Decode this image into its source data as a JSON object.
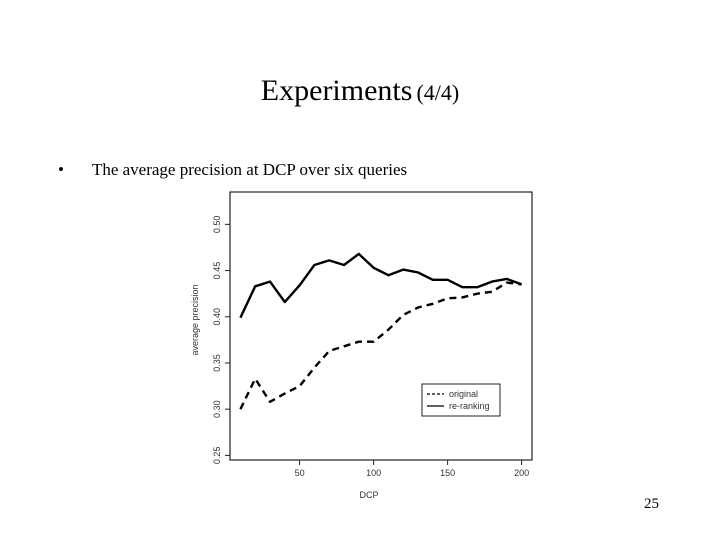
{
  "slide": {
    "title": "Experiments",
    "title_suffix": "(4/4)",
    "bullet": "The average precision at DCP over six queries",
    "page_number": "25"
  },
  "chart_data": {
    "type": "line",
    "xlabel": "DCP",
    "ylabel": "average precision",
    "xlim": [
      3,
      207
    ],
    "ylim": [
      0.245,
      0.535
    ],
    "xticks": [
      50,
      100,
      150,
      200
    ],
    "xtick_labels": [
      "50",
      "100",
      "150",
      "200"
    ],
    "yticks": [
      0.25,
      0.3,
      0.35,
      0.4,
      0.45,
      0.5
    ],
    "ytick_labels": [
      "0.25",
      "0.30",
      "0.35",
      "0.40",
      "0.45",
      "0.50"
    ],
    "grid": false,
    "legend_position": "bottom-right",
    "series": [
      {
        "name": "original",
        "style": "dashed",
        "x": [
          10,
          20,
          30,
          40,
          50,
          60,
          70,
          80,
          90,
          100,
          110,
          120,
          130,
          140,
          150,
          160,
          170,
          180,
          190,
          200
        ],
        "y": [
          0.3,
          0.333,
          0.308,
          0.317,
          0.325,
          0.345,
          0.363,
          0.368,
          0.373,
          0.373,
          0.386,
          0.402,
          0.41,
          0.414,
          0.42,
          0.421,
          0.425,
          0.427,
          0.437,
          0.435
        ]
      },
      {
        "name": "re-ranking",
        "style": "solid",
        "x": [
          10,
          20,
          30,
          40,
          50,
          60,
          70,
          80,
          90,
          100,
          110,
          120,
          130,
          140,
          150,
          160,
          170,
          180,
          190,
          200
        ],
        "y": [
          0.399,
          0.433,
          0.438,
          0.416,
          0.434,
          0.456,
          0.461,
          0.456,
          0.468,
          0.453,
          0.445,
          0.451,
          0.448,
          0.44,
          0.44,
          0.432,
          0.432,
          0.438,
          0.441,
          0.435
        ]
      }
    ]
  }
}
